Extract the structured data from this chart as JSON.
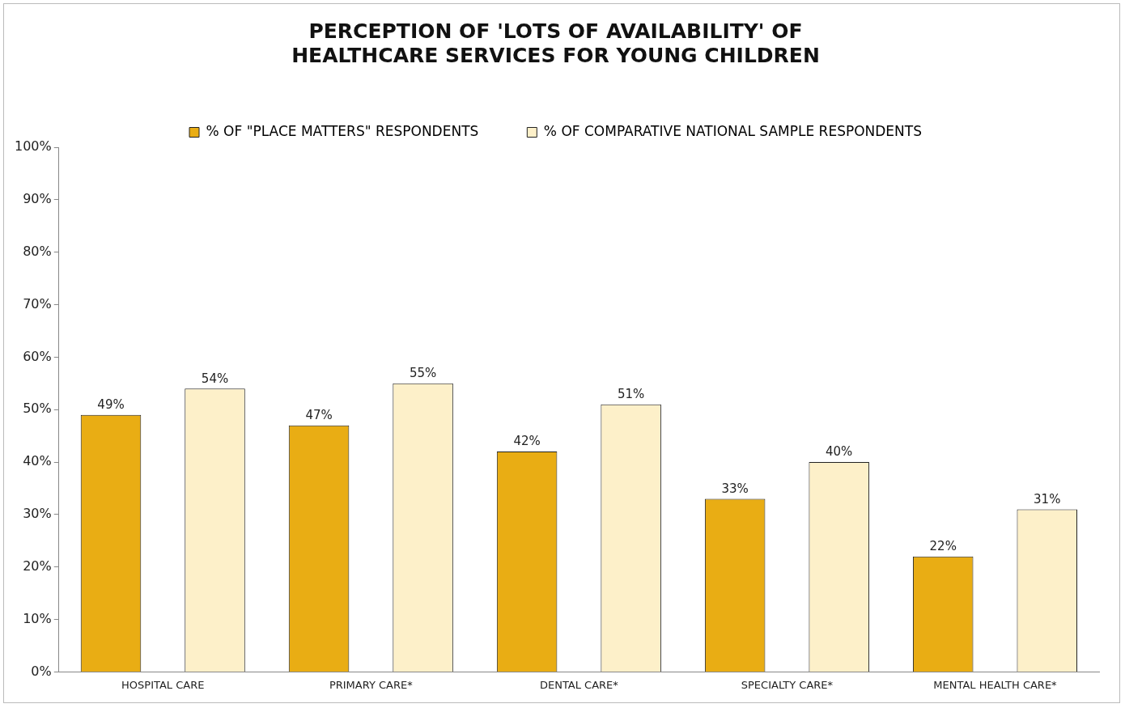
{
  "chart_data": {
    "type": "bar",
    "title": "PERCEPTION OF 'LOTS OF AVAILABILITY' OF\nHEALTHCARE SERVICES FOR YOUNG CHILDREN",
    "categories": [
      "HOSPITAL CARE",
      "PRIMARY CARE*",
      "DENTAL CARE*",
      "SPECIALTY CARE*",
      "MENTAL HEALTH CARE*"
    ],
    "series": [
      {
        "name": "% OF \"PLACE MATTERS\" RESPONDENTS",
        "color": "#e9ad14",
        "values": [
          49,
          47,
          42,
          33,
          22
        ],
        "value_labels": [
          "49%",
          "47%",
          "42%",
          "33%",
          "22%"
        ]
      },
      {
        "name": "% OF COMPARATIVE NATIONAL SAMPLE RESPONDENTS",
        "color": "#fdf0c9",
        "values": [
          54,
          55,
          51,
          40,
          31
        ],
        "value_labels": [
          "54%",
          "55%",
          "51%",
          "40%",
          "31%"
        ]
      }
    ],
    "ylim": [
      0,
      100
    ],
    "yticks": [
      {
        "value": 0,
        "label": "0%"
      },
      {
        "value": 10,
        "label": "10%"
      },
      {
        "value": 20,
        "label": "20%"
      },
      {
        "value": 30,
        "label": "30%"
      },
      {
        "value": 40,
        "label": "40%"
      },
      {
        "value": 50,
        "label": "50%"
      },
      {
        "value": 60,
        "label": "60%"
      },
      {
        "value": 70,
        "label": "70%"
      },
      {
        "value": 80,
        "label": "80%"
      },
      {
        "value": 90,
        "label": "90%"
      },
      {
        "value": 100,
        "label": "100%"
      }
    ],
    "grid": false,
    "legend": "top"
  }
}
